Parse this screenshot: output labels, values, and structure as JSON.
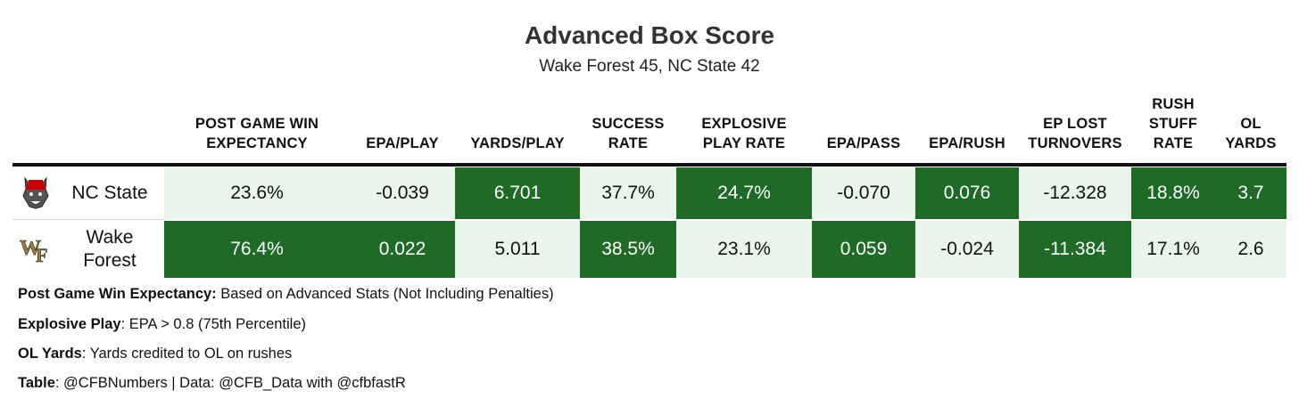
{
  "title": "Advanced Box Score",
  "subtitle": "Wake Forest 45, NC State 42",
  "columns": [
    {
      "line1": "POST GAME WIN",
      "line2": "EXPECTANCY"
    },
    {
      "line1": "",
      "line2": "EPA/PLAY"
    },
    {
      "line1": "",
      "line2": "YARDS/PLAY"
    },
    {
      "line1": "SUCCESS",
      "line2": "RATE"
    },
    {
      "line1": "EXPLOSIVE",
      "line2": "PLAY RATE"
    },
    {
      "line1": "",
      "line2": "EPA/PASS"
    },
    {
      "line1": "",
      "line2": "EPA/RUSH"
    },
    {
      "line1": "EP LOST",
      "line2": "TURNOVERS"
    },
    {
      "line0": "RUSH",
      "line1": "STUFF",
      "line2": "RATE"
    },
    {
      "line1": "OL",
      "line2": "YARDS"
    }
  ],
  "rows": [
    {
      "team_line1": "NC State",
      "team_line2": "",
      "logo": "nc-state-wolf-logo",
      "values": [
        "23.6%",
        "-0.039",
        "6.701",
        "37.7%",
        "24.7%",
        "-0.070",
        "0.076",
        "-12.328",
        "18.8%",
        "3.7"
      ]
    },
    {
      "team_line1": "Wake",
      "team_line2": "Forest",
      "logo": "wake-forest-wf-logo",
      "values": [
        "76.4%",
        "0.022",
        "5.011",
        "38.5%",
        "23.1%",
        "0.059",
        "-0.024",
        "-11.384",
        "17.1%",
        "2.6"
      ]
    }
  ],
  "notes": [
    {
      "label": "Post Game Win Expectancy:",
      "text": " Based on Advanced Stats (Not Including Penalties)"
    },
    {
      "label": "Explosive Play",
      "text": ": EPA > 0.8 (75th Percentile)"
    },
    {
      "label": "OL Yards",
      "text": ": Yards credited to OL on rushes"
    },
    {
      "label": "Table",
      "text": ": @CFBNumbers | Data: @CFB_Data with @cfbfastR"
    }
  ],
  "colors": {
    "winner_fill": "#1f6a26",
    "loser_fill": "#e9f5ea"
  }
}
